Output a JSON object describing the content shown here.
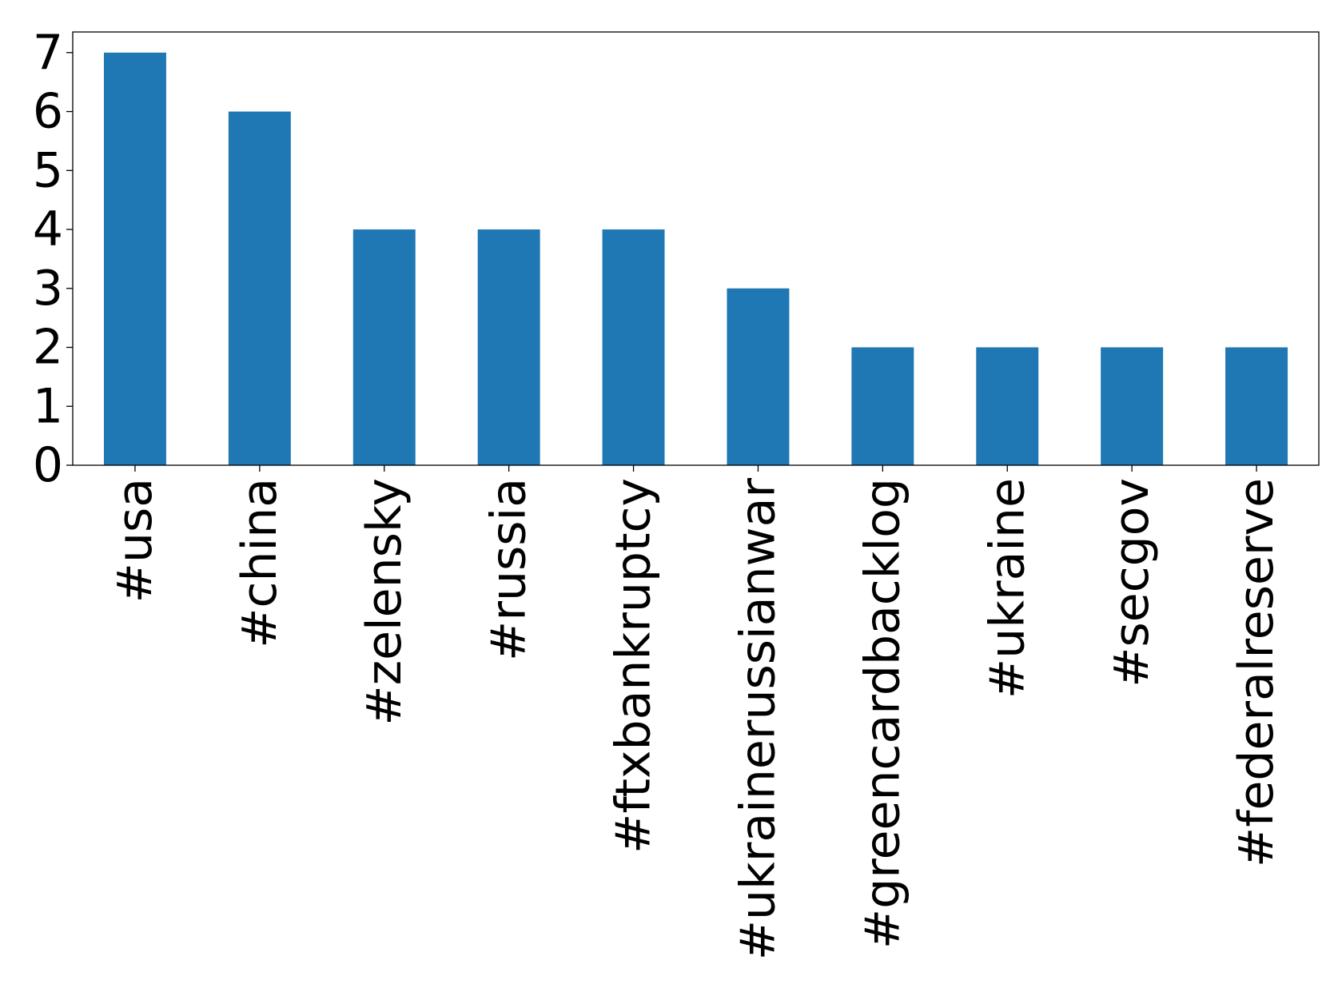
{
  "chart_data": {
    "type": "bar",
    "title": "",
    "xlabel": "",
    "ylabel": "",
    "categories": [
      "#usa",
      "#china",
      "#zelensky",
      "#russia",
      "#ftxbankruptcy",
      "#ukrainerussianwar",
      "#greencardbacklog",
      "#ukraine",
      "#secgov",
      "#federalreserve"
    ],
    "values": [
      7,
      6,
      4,
      4,
      4,
      3,
      2,
      2,
      2,
      2
    ],
    "ylim": [
      0,
      7.35
    ],
    "yticks": [
      "0",
      "1",
      "2",
      "3",
      "4",
      "5",
      "6",
      "7"
    ],
    "grid": false,
    "bar_color": "#1f77b4"
  }
}
